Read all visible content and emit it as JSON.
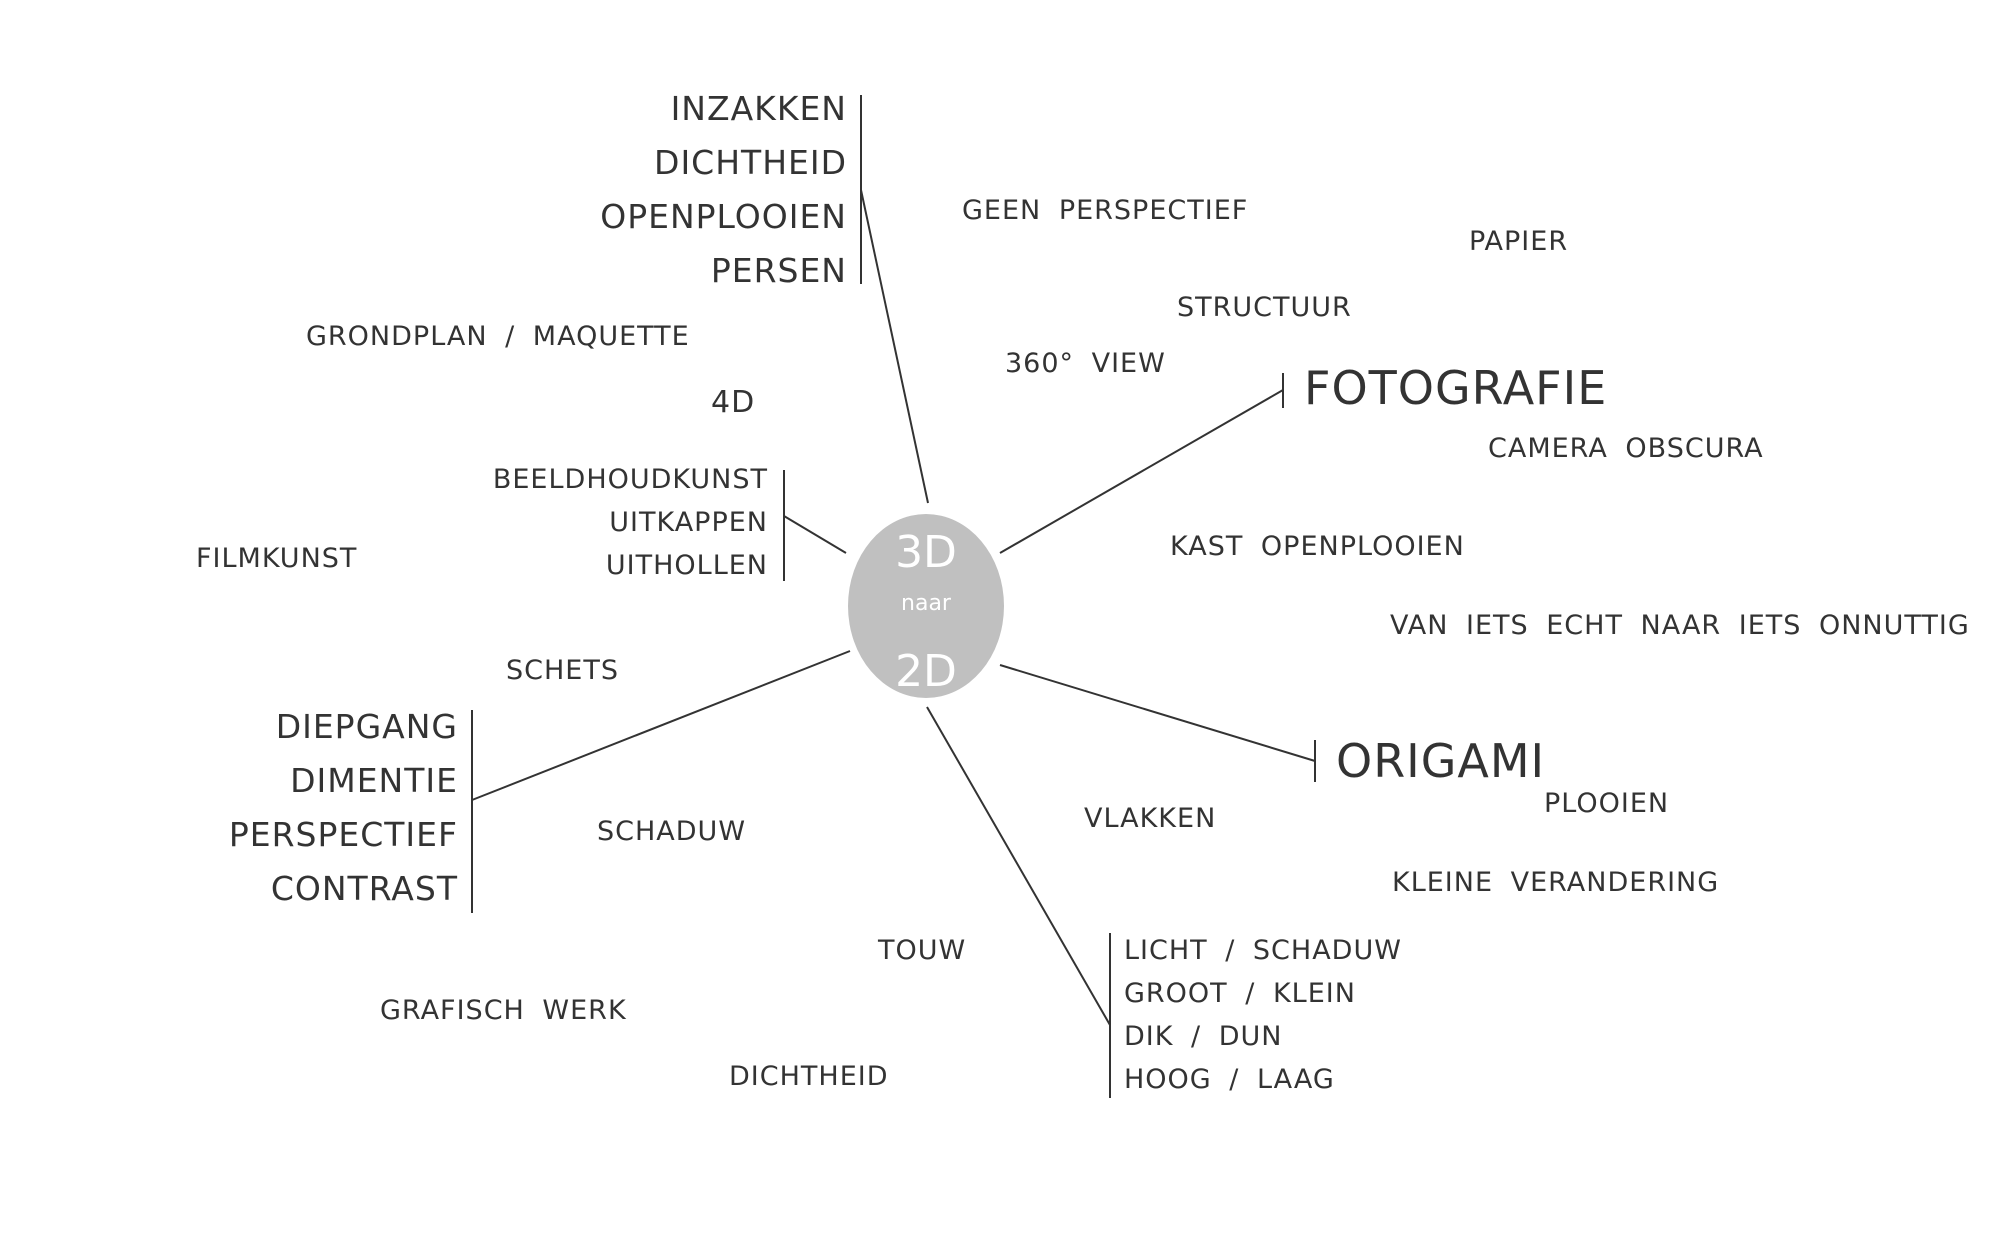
{
  "center": {
    "line1": "3D",
    "line2": "naar",
    "line3": "2D",
    "fill": "#c0c0c0"
  },
  "colors": {
    "line": "#333333",
    "text": "#333333"
  },
  "branches": {
    "top": [
      "INZAKKEN",
      "DICHTHEID",
      "OPENPLOOIEN",
      "PERSEN"
    ],
    "upper_left": [
      "BEELDHOUDKUNST",
      "UITKAPPEN",
      "UITHOLLEN"
    ],
    "left": [
      "DIEPGANG",
      "DIMENTIE",
      "PERSPECTIEF",
      "CONTRAST"
    ],
    "bottom": [
      "LICHT / SCHADUW",
      "GROOT / KLEIN",
      "DIK / DUN",
      "HOOG / LAAG"
    ],
    "fotografie": "FOTOGRAFIE",
    "origami": "ORIGAMI"
  },
  "terms": {
    "geen_perspectief": "GEEN PERSPECTIEF",
    "papier": "PAPIER",
    "structuur": "STRUCTUUR",
    "grondplan": "GRONDPLAN / MAQUETTE",
    "view360": "360° VIEW",
    "d4": "4D",
    "camera_obscura": "CAMERA OBSCURA",
    "filmkunst": "FILMKUNST",
    "kast_openplooien": "KAST OPENPLOOIEN",
    "van_iets_echt": "VAN IETS ECHT NAAR IETS ONNUTTIG",
    "schets": "SCHETS",
    "plooien": "PLOOIEN",
    "schaduw": "SCHADUW",
    "vlakken": "VLAKKEN",
    "kleine_verandering": "KLEINE VERANDERING",
    "touw": "TOUW",
    "grafisch_werk": "GRAFISCH WERK",
    "dichtheid": "DICHTHEID"
  }
}
